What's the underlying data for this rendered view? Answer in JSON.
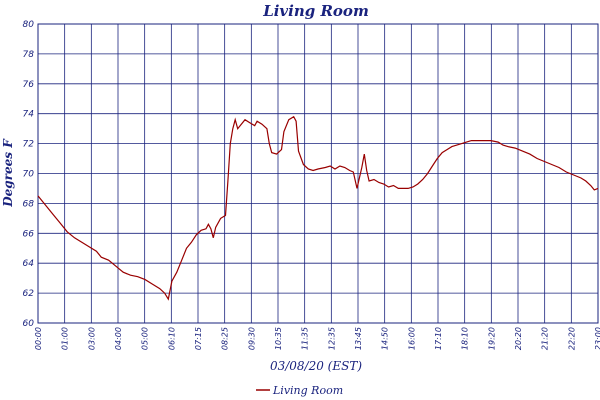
{
  "chart_data": {
    "type": "line",
    "title": "Living Room",
    "xlabel": "03/08/20 (EST)",
    "ylabel": "Degrees F",
    "ylim": [
      60,
      80
    ],
    "yticks": [
      60,
      62,
      64,
      66,
      68,
      70,
      72,
      74,
      76,
      78,
      80
    ],
    "xlim": [
      0,
      23
    ],
    "xtick_labels": [
      "00:00",
      "01:00",
      "03:00",
      "04:00",
      "05:00",
      "06:10",
      "07:15",
      "08:25",
      "09:30",
      "10:35",
      "11:35",
      "12:35",
      "13:45",
      "14:50",
      "16:00",
      "17:10",
      "18:10",
      "19:20",
      "20:20",
      "21:20",
      "22:20",
      "23:00"
    ],
    "grid": true,
    "legend": "bottom-center",
    "series": [
      {
        "name": "Living Room",
        "color": "#990000",
        "points": [
          [
            0.0,
            68.5
          ],
          [
            0.3,
            67.9
          ],
          [
            0.6,
            67.3
          ],
          [
            0.9,
            66.7
          ],
          [
            1.2,
            66.1
          ],
          [
            1.5,
            65.7
          ],
          [
            1.8,
            65.4
          ],
          [
            2.1,
            65.1
          ],
          [
            2.4,
            64.8
          ],
          [
            2.6,
            64.4
          ],
          [
            2.9,
            64.2
          ],
          [
            3.2,
            63.8
          ],
          [
            3.5,
            63.4
          ],
          [
            3.8,
            63.2
          ],
          [
            4.1,
            63.1
          ],
          [
            4.4,
            62.9
          ],
          [
            4.7,
            62.6
          ],
          [
            5.0,
            62.3
          ],
          [
            5.2,
            62.0
          ],
          [
            5.35,
            61.6
          ],
          [
            5.5,
            62.8
          ],
          [
            5.7,
            63.4
          ],
          [
            5.9,
            64.2
          ],
          [
            6.1,
            65.0
          ],
          [
            6.3,
            65.4
          ],
          [
            6.5,
            65.9
          ],
          [
            6.7,
            66.2
          ],
          [
            6.9,
            66.3
          ],
          [
            7.0,
            66.6
          ],
          [
            7.1,
            66.3
          ],
          [
            7.2,
            65.7
          ],
          [
            7.3,
            66.4
          ],
          [
            7.5,
            67.0
          ],
          [
            7.7,
            67.2
          ],
          [
            7.8,
            69.5
          ],
          [
            7.9,
            72.0
          ],
          [
            8.0,
            73.0
          ],
          [
            8.1,
            73.6
          ],
          [
            8.2,
            73.0
          ],
          [
            8.3,
            73.2
          ],
          [
            8.5,
            73.6
          ],
          [
            8.7,
            73.4
          ],
          [
            8.9,
            73.2
          ],
          [
            9.0,
            73.5
          ],
          [
            9.2,
            73.3
          ],
          [
            9.4,
            73.0
          ],
          [
            9.5,
            72.0
          ],
          [
            9.6,
            71.4
          ],
          [
            9.8,
            71.3
          ],
          [
            10.0,
            71.6
          ],
          [
            10.1,
            72.8
          ],
          [
            10.3,
            73.6
          ],
          [
            10.5,
            73.8
          ],
          [
            10.6,
            73.5
          ],
          [
            10.7,
            71.5
          ],
          [
            10.9,
            70.6
          ],
          [
            11.1,
            70.3
          ],
          [
            11.3,
            70.2
          ],
          [
            11.5,
            70.3
          ],
          [
            11.8,
            70.4
          ],
          [
            12.0,
            70.5
          ],
          [
            12.2,
            70.3
          ],
          [
            12.4,
            70.5
          ],
          [
            12.6,
            70.4
          ],
          [
            12.8,
            70.2
          ],
          [
            12.95,
            70.1
          ],
          [
            13.1,
            69.0
          ],
          [
            13.3,
            70.4
          ],
          [
            13.4,
            71.3
          ],
          [
            13.5,
            70.2
          ],
          [
            13.6,
            69.5
          ],
          [
            13.8,
            69.6
          ],
          [
            14.0,
            69.4
          ],
          [
            14.2,
            69.3
          ],
          [
            14.4,
            69.1
          ],
          [
            14.6,
            69.2
          ],
          [
            14.8,
            69.0
          ],
          [
            15.0,
            69.0
          ],
          [
            15.2,
            69.0
          ],
          [
            15.4,
            69.1
          ],
          [
            15.6,
            69.3
          ],
          [
            15.8,
            69.6
          ],
          [
            16.0,
            70.0
          ],
          [
            16.2,
            70.5
          ],
          [
            16.4,
            71.0
          ],
          [
            16.6,
            71.4
          ],
          [
            16.8,
            71.6
          ],
          [
            17.0,
            71.8
          ],
          [
            17.2,
            71.9
          ],
          [
            17.4,
            72.0
          ],
          [
            17.6,
            72.1
          ],
          [
            17.8,
            72.2
          ],
          [
            18.0,
            72.2
          ],
          [
            18.3,
            72.2
          ],
          [
            18.6,
            72.2
          ],
          [
            18.9,
            72.1
          ],
          [
            19.1,
            71.9
          ],
          [
            19.3,
            71.8
          ],
          [
            19.6,
            71.7
          ],
          [
            19.9,
            71.5
          ],
          [
            20.2,
            71.3
          ],
          [
            20.5,
            71.0
          ],
          [
            20.8,
            70.8
          ],
          [
            21.1,
            70.6
          ],
          [
            21.4,
            70.4
          ],
          [
            21.7,
            70.1
          ],
          [
            22.0,
            69.9
          ],
          [
            22.3,
            69.7
          ],
          [
            22.5,
            69.5
          ],
          [
            22.7,
            69.2
          ],
          [
            22.85,
            68.9
          ],
          [
            23.0,
            69.0
          ]
        ]
      }
    ]
  }
}
